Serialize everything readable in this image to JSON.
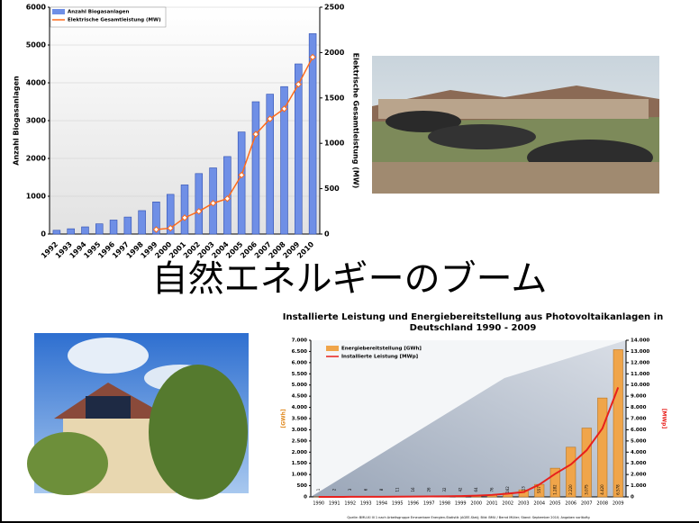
{
  "slide_title": "自然エネルギーのブーム",
  "chart_data": [
    {
      "type": "bar",
      "y_label": "Anzahl Biogasanlagen",
      "y2_label": "Elektrische Gesamtleistung (MW)",
      "categories": [
        "1992",
        "1993",
        "1994",
        "1995",
        "1996",
        "1997",
        "1998",
        "1999",
        "2000",
        "2001",
        "2002",
        "2003",
        "2004",
        "2005",
        "2006",
        "2007",
        "2008",
        "2009",
        "2010"
      ],
      "series": [
        {
          "name": "Anzahl Biogasanlagen",
          "color": "#6f8fe6",
          "values": [
            100,
            140,
            190,
            270,
            370,
            450,
            620,
            850,
            1050,
            1300,
            1600,
            1750,
            2050,
            2700,
            3500,
            3700,
            3900,
            4500,
            5300
          ]
        },
        {
          "name": "Elektrische Gesamtleistung (MW)",
          "color": "#ff6a1a",
          "axis": "y2",
          "values": [
            null,
            null,
            null,
            null,
            null,
            null,
            null,
            50,
            65,
            180,
            250,
            340,
            390,
            650,
            1100,
            1270,
            1380,
            1650,
            1950
          ]
        }
      ],
      "ylim": [
        0,
        6000
      ],
      "yticks": [
        0,
        1000,
        2000,
        3000,
        4000,
        5000,
        6000
      ],
      "y2lim": [
        0,
        2500
      ],
      "y2ticks": [
        0,
        500,
        1000,
        1500,
        2000,
        2500
      ],
      "grid": true
    },
    {
      "type": "bar",
      "title": "Installierte Leistung und Energiebereitstellung aus Photovoltaikanlagen in Deutschland 1990 - 2009",
      "y_label": "[GWh]",
      "y2_label": "[MWp]",
      "source": "Quelle: BMU-KI III 1 nach Arbeitsgruppe Erneuerbare Energien-Statistik (AGEE-Stat); Bild: BMU / Bernd Müller; Stand: September 2010; Angaben vorläufig",
      "categories": [
        "1990",
        "1991",
        "1992",
        "1993",
        "1994",
        "1995",
        "1996",
        "1997",
        "1998",
        "1999",
        "2000",
        "2001",
        "2002",
        "2003",
        "2004",
        "2005",
        "2006",
        "2007",
        "2008",
        "2009"
      ],
      "series": [
        {
          "name": "Energiebereitstellung [GWh]",
          "color": "#f0a54a",
          "values": [
            1,
            2,
            3,
            6,
            8,
            11,
            16,
            26,
            32,
            42,
            64,
            76,
            162,
            313,
            557,
            1282,
            2220,
            3075,
            4420,
            6578
          ],
          "value_labels": [
            "1",
            "2",
            "3",
            "6",
            "8",
            "11",
            "16",
            "26",
            "32",
            "42",
            "64",
            "76",
            "162",
            "313",
            "557",
            "1.282",
            "2.220",
            "3.075",
            "4.420",
            "6.578"
          ]
        },
        {
          "name": "Installierte Leistung [MWp]",
          "color": "#e8201c",
          "axis": "y2",
          "values": [
            2,
            3,
            6,
            9,
            12,
            18,
            28,
            42,
            54,
            70,
            114,
            176,
            296,
            435,
            1105,
            2056,
            2899,
            4170,
            6120,
            9785
          ]
        }
      ],
      "ylim": [
        0,
        7000
      ],
      "yticks": [
        0,
        500,
        {
          "value": 1000,
          "label": "1.000"
        },
        {
          "value": 1500,
          "label": "1.500"
        },
        {
          "value": 2000,
          "label": "2.000"
        },
        {
          "value": 2500,
          "label": "2.500"
        },
        {
          "value": 3000,
          "label": "3.000"
        },
        {
          "value": 3500,
          "label": "3.500"
        },
        {
          "value": 4000,
          "label": "4.000"
        },
        {
          "value": 4500,
          "label": "4.500"
        },
        {
          "value": 5000,
          "label": "5.000"
        },
        {
          "value": 5500,
          "label": "5.500"
        },
        {
          "value": 6000,
          "label": "6.000"
        },
        {
          "value": 6500,
          "label": "6.500"
        },
        {
          "value": 7000,
          "label": "7.000"
        }
      ],
      "y2lim": [
        0,
        14000
      ],
      "y2ticks": [
        0,
        {
          "value": 1000,
          "label": "1.000"
        },
        {
          "value": 2000,
          "label": "2.000"
        },
        {
          "value": 3000,
          "label": "3.000"
        },
        {
          "value": 4000,
          "label": "4.000"
        },
        {
          "value": 5000,
          "label": "5.000"
        },
        {
          "value": 6000,
          "label": "6.000"
        },
        {
          "value": 7000,
          "label": "7.000"
        },
        {
          "value": 8000,
          "label": "8.000"
        },
        {
          "value": 9000,
          "label": "9.000"
        },
        {
          "value": 10000,
          "label": "10.000"
        },
        {
          "value": 11000,
          "label": "11.000"
        },
        {
          "value": 12000,
          "label": "12.000"
        },
        {
          "value": 13000,
          "label": "13.000"
        },
        {
          "value": 14000,
          "label": "14.000"
        }
      ],
      "grid": false
    }
  ]
}
